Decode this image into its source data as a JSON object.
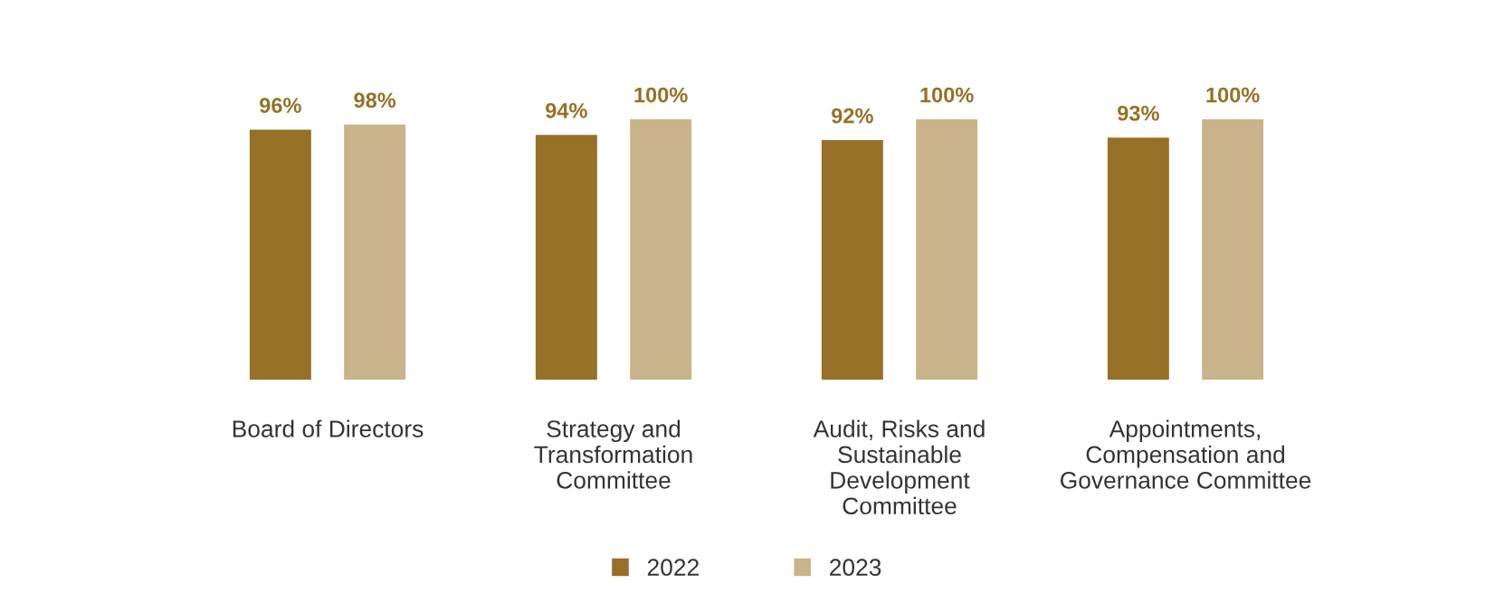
{
  "chart_data": {
    "type": "bar",
    "categories": [
      "Board of Directors",
      "Strategy and\nTransformation\nCommittee",
      "Audit, Risks and\nSustainable\nDevelopment\nCommittee",
      "Appointments,\nCompensation and\nGovernance Committee"
    ],
    "series": [
      {
        "name": "2022",
        "color": "#967026",
        "values": [
          96,
          94,
          92,
          93
        ],
        "value_labels": [
          "96%",
          "94%",
          "92%",
          "93%"
        ]
      },
      {
        "name": "2023",
        "color": "#c9b38a",
        "values": [
          98,
          100,
          100,
          100
        ],
        "value_labels": [
          "98%",
          "100%",
          "100%",
          "100%"
        ]
      }
    ],
    "legend": "bottom",
    "tick_labels": "x"
  }
}
